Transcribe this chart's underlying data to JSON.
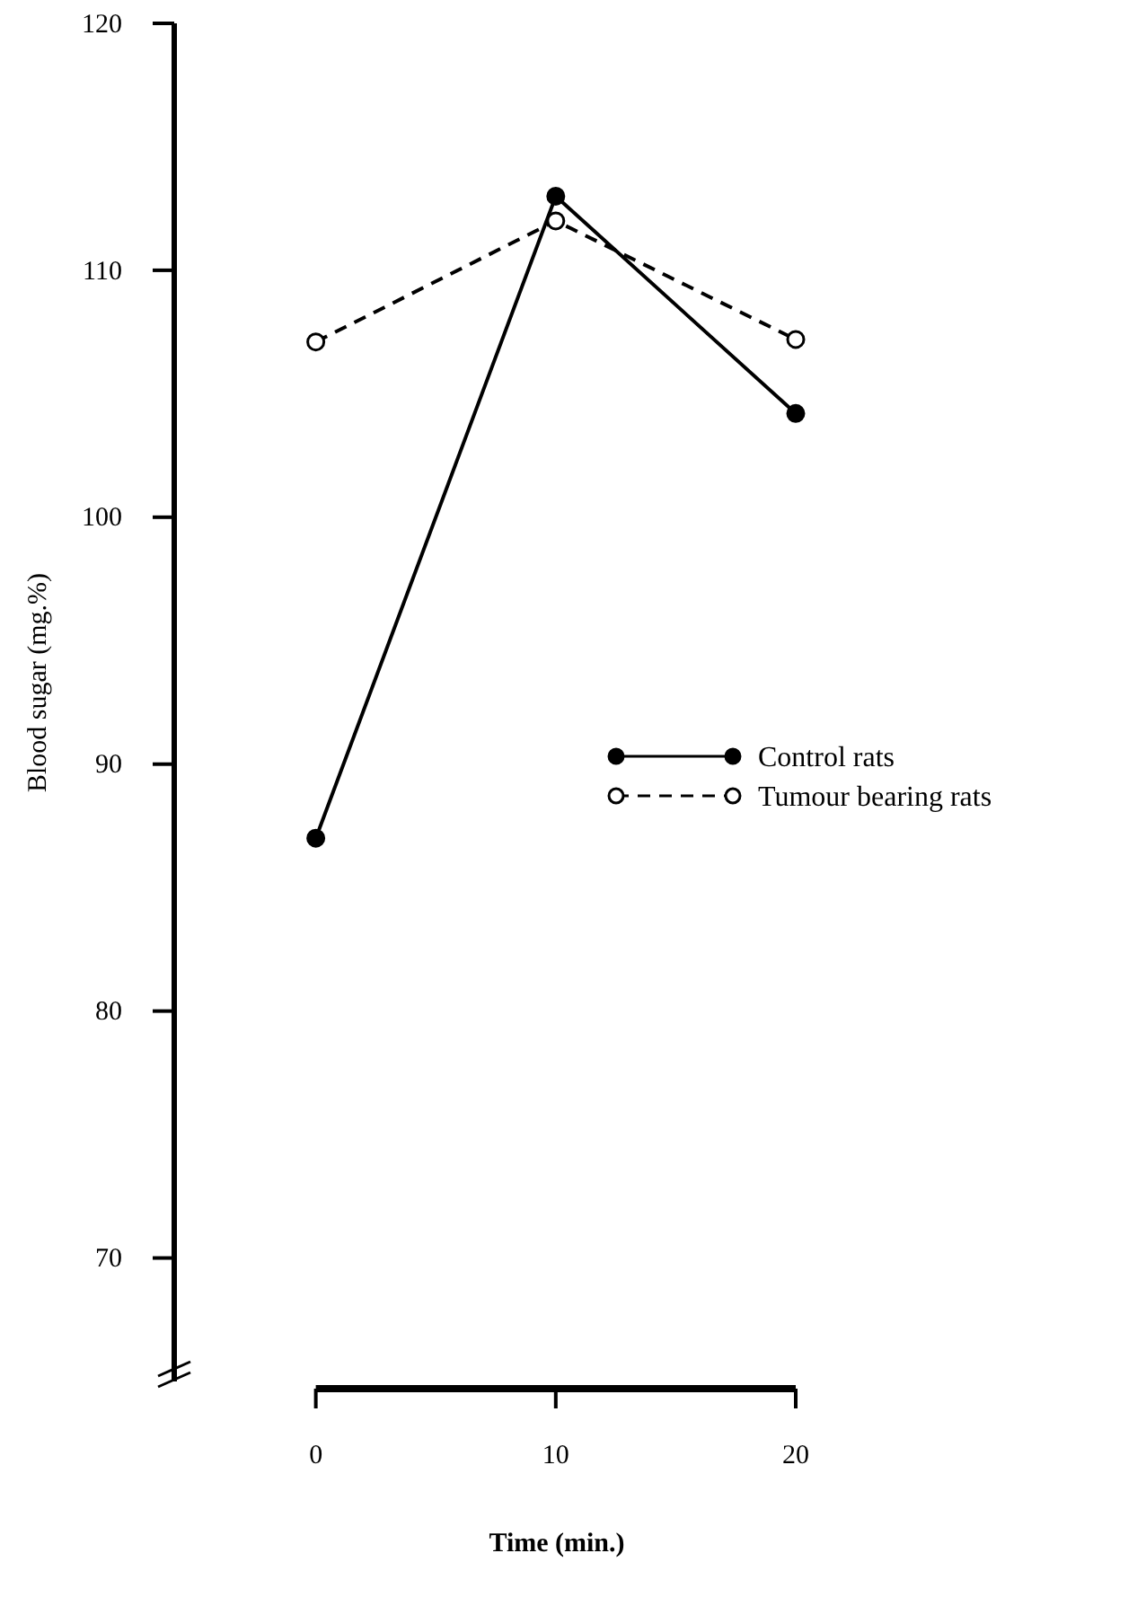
{
  "chart_data": {
    "type": "line",
    "xlabel": "Time (min.)",
    "ylabel": "Blood sugar (mg.%)",
    "x": [
      0,
      10,
      20
    ],
    "xlim": [
      -5.9,
      20
    ],
    "xticks": [
      0,
      10,
      20
    ],
    "ylim": [
      65,
      120
    ],
    "yticks": [
      70,
      80,
      90,
      100,
      110,
      120
    ],
    "series": [
      {
        "name": "Control rats",
        "color": "#000000",
        "values": [
          87,
          113,
          104.2
        ],
        "line_style": "solid"
      },
      {
        "name": "Tumour bearing rats",
        "color": "#000000",
        "values": [
          107.1,
          112,
          107.2
        ],
        "line_style": "dashed"
      }
    ],
    "marker": "circle",
    "legend": "right"
  }
}
